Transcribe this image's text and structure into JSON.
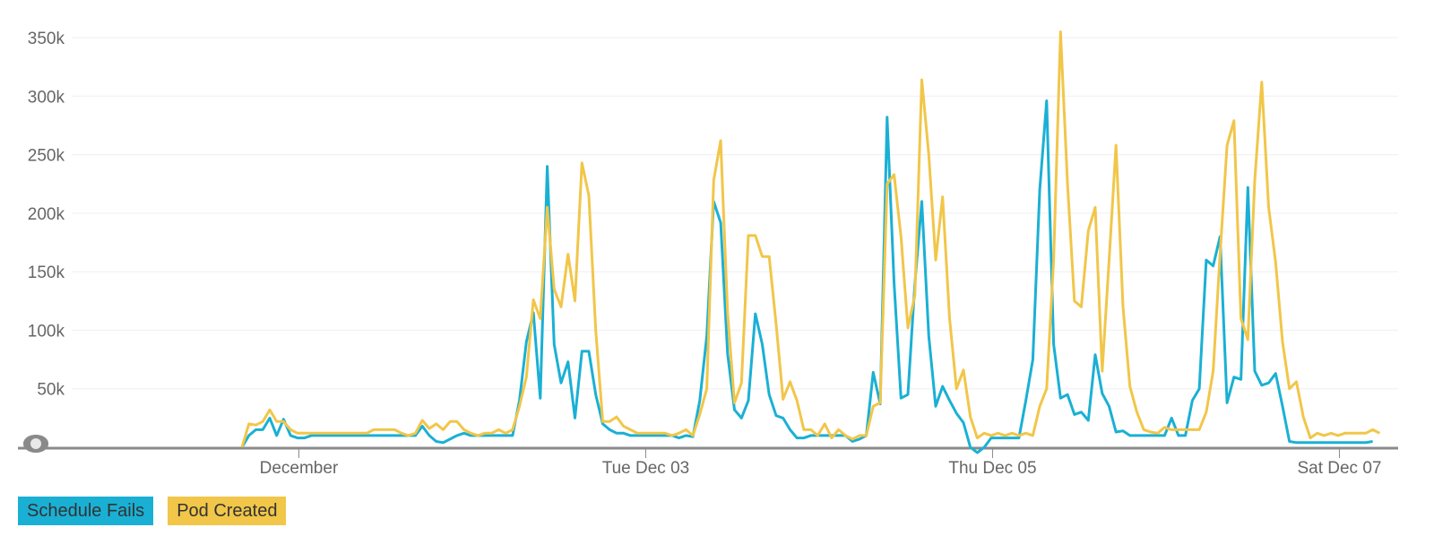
{
  "chart_data": {
    "type": "line",
    "y_ticks": [
      "50k",
      "100k",
      "150k",
      "200k",
      "250k",
      "300k",
      "350k"
    ],
    "y_tick_values": [
      50000,
      100000,
      150000,
      200000,
      250000,
      300000,
      350000
    ],
    "ylim": [
      0,
      350000
    ],
    "x_tick_labels": [
      "December",
      "Tue Dec 03",
      "Thu Dec 05",
      "Sat Dec 07"
    ],
    "x_tick_index": [
      8.2,
      58.2,
      108.2,
      158.2
    ],
    "grid": true,
    "legend_position": "bottom-left",
    "series": [
      {
        "name": "Schedule Fails",
        "color": "#1ab0d4",
        "start_index": 0,
        "values": [
          0,
          10000,
          15000,
          15000,
          25000,
          10000,
          24000,
          10000,
          8000,
          8000,
          10000,
          10000,
          10000,
          10000,
          10000,
          10000,
          10000,
          10000,
          10000,
          10000,
          10000,
          10000,
          10000,
          10000,
          10000,
          10000,
          18000,
          10000,
          5000,
          4000,
          7000,
          10000,
          12000,
          10000,
          10000,
          10000,
          10000,
          10000,
          10000,
          10000,
          40000,
          90000,
          115000,
          42000,
          240000,
          88000,
          55000,
          73000,
          25000,
          82000,
          82000,
          45000,
          20000,
          15000,
          12000,
          12000,
          10000,
          10000,
          10000,
          10000,
          10000,
          10000,
          10000,
          8000,
          10000,
          9000,
          40000,
          95000,
          210000,
          192000,
          80000,
          32000,
          25000,
          40000,
          114000,
          88000,
          45000,
          27000,
          25000,
          15000,
          8000,
          8000,
          10000,
          10000,
          10000,
          10000,
          10000,
          10000,
          5000,
          7000,
          10000,
          64000,
          37000,
          282000,
          140000,
          42000,
          45000,
          140000,
          210000,
          95000,
          35000,
          52000,
          40000,
          29000,
          21000,
          0,
          -6000,
          0,
          8000,
          8000,
          8000,
          8000,
          8000,
          40000,
          75000,
          220000,
          296000,
          88000,
          42000,
          45000,
          28000,
          30000,
          23000,
          79000,
          46000,
          35000,
          13000,
          14000,
          10000,
          10000,
          10000,
          10000,
          10000,
          10000,
          25000,
          10000,
          10000,
          40000,
          50000,
          160000,
          155000,
          180000,
          38000,
          60000,
          58000,
          222000,
          65000,
          53000,
          55000,
          63000,
          35000,
          5000,
          4000,
          4000,
          4000,
          4000,
          4000,
          4000,
          4000,
          4000,
          4000,
          4000,
          4000,
          5000
        ]
      },
      {
        "name": "Pod Created",
        "color": "#f1c649",
        "start_index": 0,
        "values": [
          0,
          20000,
          19000,
          22000,
          32000,
          22000,
          22000,
          15000,
          12000,
          12000,
          12000,
          12000,
          12000,
          12000,
          12000,
          12000,
          12000,
          12000,
          12000,
          15000,
          15000,
          15000,
          15000,
          12000,
          10000,
          12000,
          23000,
          16000,
          20000,
          15000,
          22000,
          22000,
          15000,
          12000,
          10000,
          12000,
          12000,
          15000,
          12000,
          15000,
          35000,
          60000,
          126000,
          110000,
          205000,
          135000,
          120000,
          165000,
          125000,
          243000,
          215000,
          100000,
          22000,
          22000,
          26000,
          18000,
          15000,
          12000,
          12000,
          12000,
          12000,
          12000,
          10000,
          12000,
          15000,
          10000,
          28000,
          50000,
          228000,
          262000,
          115000,
          38000,
          55000,
          181000,
          181000,
          163000,
          163000,
          105000,
          41000,
          56000,
          40000,
          15000,
          15000,
          10000,
          20000,
          8000,
          15000,
          10000,
          7000,
          10000,
          10000,
          35000,
          38000,
          225000,
          233000,
          180000,
          102000,
          130000,
          314000,
          250000,
          160000,
          214000,
          110000,
          50000,
          66000,
          26000,
          8000,
          12000,
          10000,
          12000,
          10000,
          12000,
          10000,
          12000,
          10000,
          35000,
          50000,
          160000,
          355000,
          225000,
          125000,
          120000,
          185000,
          205000,
          65000,
          160000,
          258000,
          120000,
          52000,
          30000,
          15000,
          13000,
          12000,
          17000,
          15000,
          15000,
          15000,
          15000,
          15000,
          30000,
          65000,
          165000,
          258000,
          279000,
          110000,
          92000,
          228000,
          312000,
          205000,
          158000,
          90000,
          50000,
          56000,
          26000,
          8000,
          12000,
          10000,
          12000,
          10000,
          12000,
          12000,
          12000,
          12000,
          15000,
          12000
        ]
      }
    ]
  },
  "legend": {
    "items": [
      {
        "label": "Schedule Fails",
        "color": "#1ab0d4"
      },
      {
        "label": "Pod Created",
        "color": "#f1c649"
      }
    ]
  }
}
